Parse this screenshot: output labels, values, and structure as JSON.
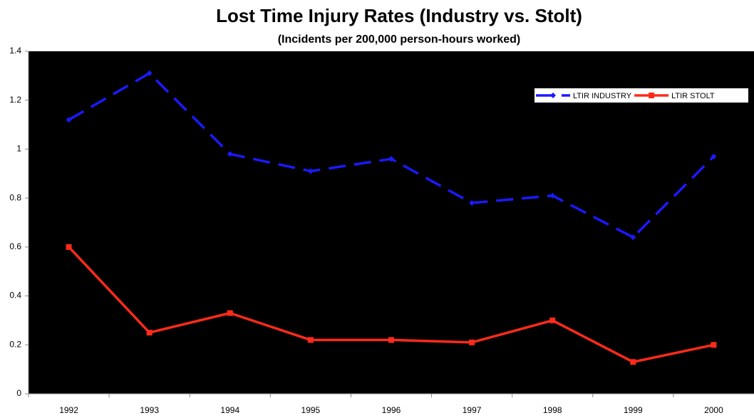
{
  "chart_data": {
    "type": "line",
    "title": "Lost Time Injury Rates (Industry vs. Stolt)",
    "subtitle": "(Incidents per 200,000 person-hours worked)",
    "categories": [
      "1992",
      "1993",
      "1994",
      "1995",
      "1996",
      "1997",
      "1998",
      "1999",
      "2000"
    ],
    "series": [
      {
        "name": "LTIR INDUSTRY",
        "color": "#1a1aff",
        "dashed": true,
        "marker": "diamond",
        "values": [
          1.12,
          1.31,
          0.98,
          0.91,
          0.96,
          0.78,
          0.81,
          0.64,
          0.97
        ]
      },
      {
        "name": "LTIR STOLT",
        "color": "#ff2a1a",
        "dashed": false,
        "marker": "square",
        "values": [
          0.6,
          0.25,
          0.33,
          0.22,
          0.22,
          0.21,
          0.3,
          0.13,
          0.2
        ]
      }
    ],
    "ylim": [
      0,
      1.4
    ],
    "yticks": [
      0,
      0.2,
      0.4,
      0.6,
      0.8,
      1,
      1.2,
      1.4
    ],
    "legend": "top-right",
    "plot_background": "#000000"
  }
}
